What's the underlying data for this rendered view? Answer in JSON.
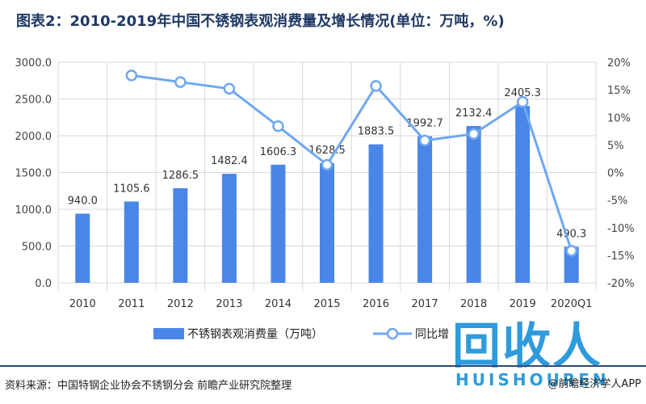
{
  "title": "图表2：2010-2019年中国不锈钢表观消费量及增长情况(单位：万吨，%)",
  "source": "资料来源：中国特钢企业协会不锈钢分会 前瞻产业研究院整理",
  "brand_app": "@前瞻经济学人APP",
  "logo": {
    "main": "回收人",
    "sub": "HUISHOUREN"
  },
  "colors": {
    "bar": "#4a86e8",
    "line": "#6fa8f0",
    "title": "#1f3864",
    "grid": "#d9d9d9"
  },
  "chart_data": {
    "type": "bar",
    "categories": [
      "2010",
      "2011",
      "2012",
      "2013",
      "2014",
      "2015",
      "2016",
      "2017",
      "2018",
      "2019",
      "2020Q1"
    ],
    "series": [
      {
        "name": "不锈钢表观消费量（万吨）",
        "type": "bar",
        "axis": "left",
        "values": [
          940.0,
          1105.6,
          1286.5,
          1482.4,
          1606.3,
          1628.5,
          1883.5,
          1992.7,
          2132.4,
          2405.3,
          490.3
        ],
        "labels": [
          "940.0",
          "1105.6",
          "1286.5",
          "1482.4",
          "1606.3",
          "1628.5",
          "1883.5",
          "1992.7",
          "2132.4",
          "2405.3",
          "490.3"
        ]
      },
      {
        "name": "同比增长",
        "type": "line",
        "axis": "right",
        "values": [
          null,
          17.6,
          16.4,
          15.2,
          8.4,
          1.4,
          15.7,
          5.8,
          7.0,
          12.8,
          -14.2
        ]
      }
    ],
    "ylim": [
      0,
      3000
    ],
    "y2lim": [
      -20,
      20
    ],
    "yticks": [
      "0.0",
      "500.0",
      "1000.0",
      "1500.0",
      "2000.0",
      "2500.0",
      "3000.0"
    ],
    "y2ticks": [
      "-20%",
      "-15%",
      "-10%",
      "-5%",
      "0%",
      "5%",
      "10%",
      "15%",
      "20%"
    ],
    "legend_line_label": "同比增",
    "grid": true,
    "legend_position": "bottom"
  }
}
